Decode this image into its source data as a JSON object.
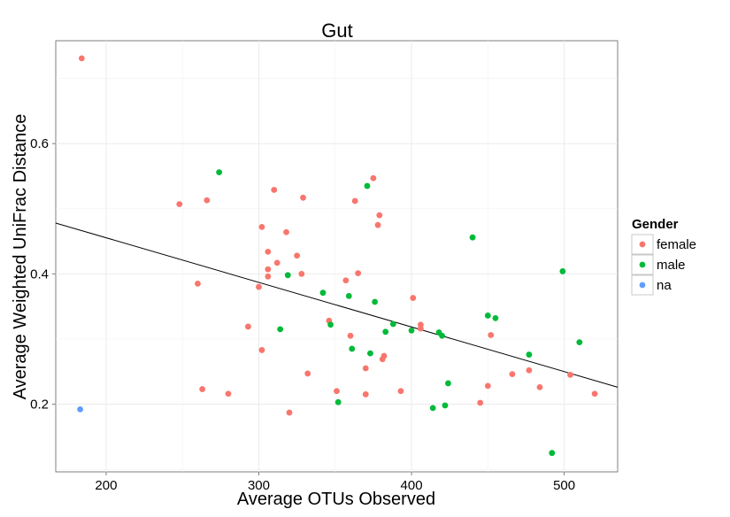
{
  "chart_data": {
    "type": "scatter",
    "title": "Gut",
    "xlabel": "Average OTUs Observed",
    "ylabel": "Average Weighted UniFrac Distance",
    "xlim": [
      167,
      535
    ],
    "ylim": [
      0.096,
      0.758
    ],
    "xticks": [
      200,
      300,
      400,
      500
    ],
    "yticks": [
      0.2,
      0.4,
      0.6
    ],
    "xtick_labels": [
      "200",
      "300",
      "400",
      "500"
    ],
    "ytick_labels": [
      "0.2",
      "0.4",
      "0.6"
    ],
    "grid": true,
    "legend": {
      "title": "Gender",
      "position": "right"
    },
    "colors": {
      "female": "#F8766D",
      "male": "#00BA38",
      "na": "#619CFF"
    },
    "trend_line": {
      "x": [
        167,
        535
      ],
      "y": [
        0.478,
        0.226
      ]
    },
    "series": [
      {
        "name": "female",
        "points": [
          [
            184,
            0.731
          ],
          [
            248,
            0.507
          ],
          [
            266,
            0.513
          ],
          [
            260,
            0.385
          ],
          [
            263,
            0.223
          ],
          [
            280,
            0.216
          ],
          [
            293,
            0.319
          ],
          [
            300,
            0.38
          ],
          [
            302,
            0.283
          ],
          [
            302,
            0.472
          ],
          [
            306,
            0.434
          ],
          [
            306,
            0.407
          ],
          [
            306,
            0.396
          ],
          [
            310,
            0.529
          ],
          [
            312,
            0.417
          ],
          [
            318,
            0.464
          ],
          [
            320,
            0.187
          ],
          [
            325,
            0.428
          ],
          [
            328,
            0.4
          ],
          [
            329,
            0.517
          ],
          [
            332,
            0.247
          ],
          [
            346,
            0.328
          ],
          [
            351,
            0.22
          ],
          [
            357,
            0.39
          ],
          [
            360,
            0.305
          ],
          [
            363,
            0.512
          ],
          [
            365,
            0.401
          ],
          [
            370,
            0.255
          ],
          [
            370,
            0.215
          ],
          [
            375,
            0.547
          ],
          [
            378,
            0.475
          ],
          [
            379,
            0.49
          ],
          [
            381,
            0.269
          ],
          [
            382,
            0.274
          ],
          [
            393,
            0.22
          ],
          [
            401,
            0.363
          ],
          [
            406,
            0.322
          ],
          [
            406,
            0.316
          ],
          [
            445,
            0.202
          ],
          [
            450,
            0.228
          ],
          [
            452,
            0.306
          ],
          [
            466,
            0.246
          ],
          [
            477,
            0.252
          ],
          [
            484,
            0.226
          ],
          [
            504,
            0.245
          ],
          [
            520,
            0.216
          ]
        ]
      },
      {
        "name": "male",
        "points": [
          [
            274,
            0.556
          ],
          [
            314,
            0.315
          ],
          [
            319,
            0.398
          ],
          [
            342,
            0.371
          ],
          [
            347,
            0.322
          ],
          [
            352,
            0.203
          ],
          [
            359,
            0.366
          ],
          [
            361,
            0.285
          ],
          [
            371,
            0.535
          ],
          [
            373,
            0.278
          ],
          [
            376,
            0.357
          ],
          [
            383,
            0.311
          ],
          [
            388,
            0.323
          ],
          [
            400,
            0.313
          ],
          [
            414,
            0.194
          ],
          [
            418,
            0.31
          ],
          [
            420,
            0.305
          ],
          [
            422,
            0.198
          ],
          [
            424,
            0.232
          ],
          [
            440,
            0.456
          ],
          [
            450,
            0.336
          ],
          [
            455,
            0.332
          ],
          [
            477,
            0.276
          ],
          [
            492,
            0.125
          ],
          [
            499,
            0.404
          ],
          [
            510,
            0.295
          ]
        ]
      },
      {
        "name": "na",
        "points": [
          [
            183,
            0.192
          ]
        ]
      }
    ]
  }
}
